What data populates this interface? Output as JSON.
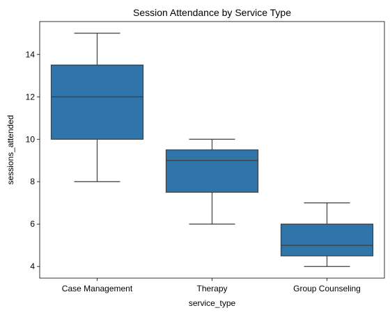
{
  "chart_data": {
    "type": "box",
    "title": "Session Attendance by Service Type",
    "xlabel": "service_type",
    "ylabel": "sessions_attended",
    "categories": [
      "Case Management",
      "Therapy",
      "Group Counseling"
    ],
    "boxes": [
      {
        "min": 8,
        "q1": 10,
        "median": 12,
        "q3": 13.5,
        "max": 15
      },
      {
        "min": 6,
        "q1": 7.5,
        "median": 9,
        "q3": 9.5,
        "max": 10
      },
      {
        "min": 4,
        "q1": 4.5,
        "median": 5,
        "q3": 6,
        "max": 7
      }
    ],
    "ylim": [
      3.45,
      15.55
    ],
    "yticks": [
      4,
      6,
      8,
      10,
      12,
      14
    ],
    "grid": false,
    "box_color": "#2f75aa",
    "line_color": "#3d3d3d"
  }
}
